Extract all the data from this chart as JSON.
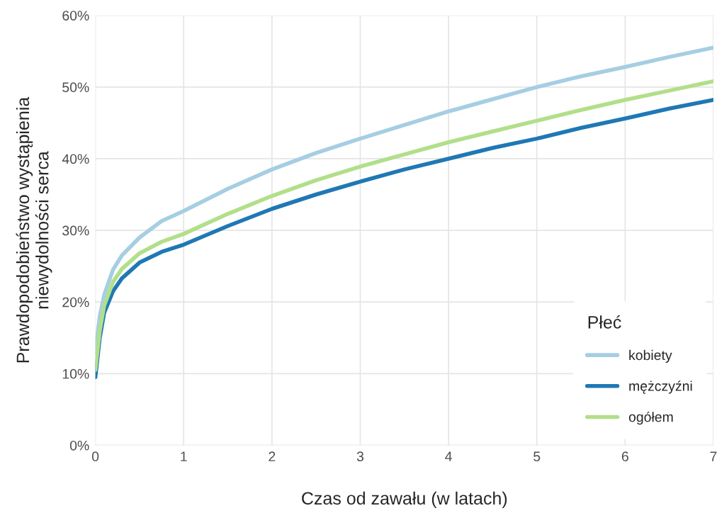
{
  "chart_data": {
    "type": "line",
    "xlabel": "Czas od zawału (w latach)",
    "ylabel": "Prawdopodobieństwo wystąpienia\nniewydolności serca",
    "legend_title": "Płeć",
    "x": [
      0,
      0.05,
      0.1,
      0.2,
      0.3,
      0.5,
      0.75,
      1,
      1.5,
      2,
      2.5,
      3,
      3.5,
      4,
      4.5,
      5,
      5.5,
      6,
      6.5,
      7
    ],
    "series": [
      {
        "name": "kobiety",
        "color": "#a6cee3",
        "values": [
          13,
          18,
          21,
          24.5,
          26.5,
          29,
          31.3,
          32.7,
          35.8,
          38.5,
          40.8,
          42.8,
          44.7,
          46.6,
          48.3,
          50.0,
          51.5,
          52.8,
          54.2,
          55.5
        ]
      },
      {
        "name": "mężczyźni",
        "color": "#1f78b4",
        "values": [
          9.5,
          15,
          18.5,
          21.5,
          23.3,
          25.5,
          27,
          28,
          30.6,
          33,
          35,
          36.8,
          38.5,
          40,
          41.5,
          42.8,
          44.3,
          45.6,
          47,
          48.2
        ]
      },
      {
        "name": "ogółem",
        "color": "#b2df8a",
        "values": [
          10.5,
          16,
          19.5,
          22.8,
          24.6,
          26.8,
          28.4,
          29.5,
          32.3,
          34.8,
          37,
          38.9,
          40.6,
          42.3,
          43.8,
          45.3,
          46.8,
          48.2,
          49.5,
          50.8
        ]
      }
    ],
    "xlim": [
      0,
      7
    ],
    "xticks": [
      0,
      1,
      2,
      3,
      4,
      5,
      6,
      7
    ],
    "ylim": [
      0,
      60
    ],
    "yticks": [
      {
        "value": 0,
        "label": "0%"
      },
      {
        "value": 10,
        "label": "10%"
      },
      {
        "value": 20,
        "label": "20%"
      },
      {
        "value": 30,
        "label": "30%"
      },
      {
        "value": 40,
        "label": "40%"
      },
      {
        "value": 50,
        "label": "50%"
      },
      {
        "value": 60,
        "label": "60%"
      }
    ],
    "grid": true,
    "legend": "bottom right",
    "line_style": "solid"
  }
}
